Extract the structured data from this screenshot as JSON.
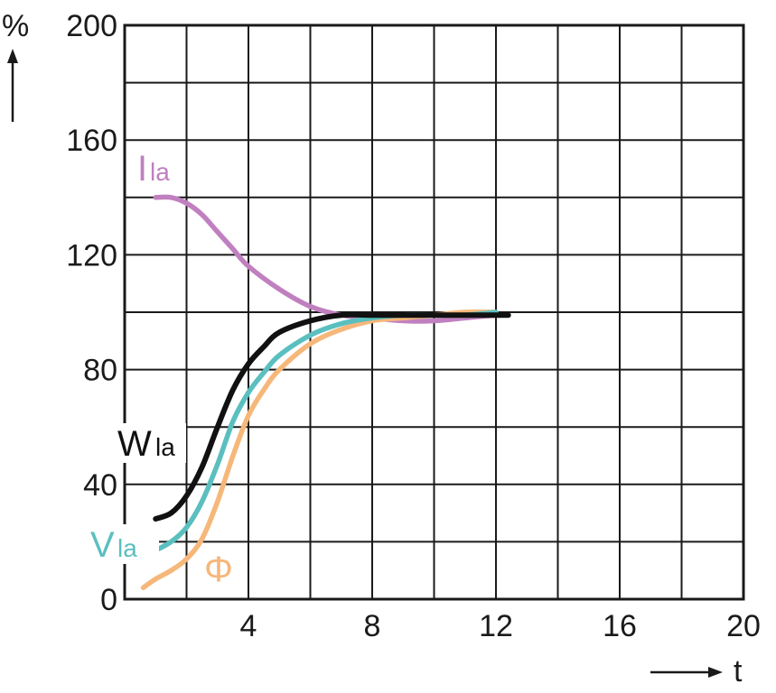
{
  "chart_data": {
    "type": "line",
    "xlim": [
      0,
      20
    ],
    "ylim": [
      0,
      200
    ],
    "x_ticks": [
      4,
      8,
      12,
      16,
      20
    ],
    "y_ticks": [
      0,
      40,
      80,
      120,
      160,
      200
    ],
    "x_tick_labels": [
      "4",
      "8",
      "12",
      "16",
      "20"
    ],
    "y_tick_labels": [
      "0",
      "40",
      "80",
      "120",
      "160",
      "200"
    ],
    "x_grid_step": 2,
    "y_grid_step": 20,
    "grid": true,
    "xlabel": "t",
    "ylabel": "%",
    "series": [
      {
        "name": "I",
        "subscript": "la",
        "color": "#c080c0",
        "x": [
          1.0,
          1.5,
          2.0,
          2.5,
          3.0,
          3.5,
          4.0,
          5.0,
          6.0,
          7.0,
          8.0,
          9.0,
          10.0,
          11.0,
          12.0
        ],
        "y": [
          140,
          140,
          138,
          134,
          128,
          122,
          116,
          108,
          102,
          99,
          98,
          97,
          97,
          98,
          99
        ]
      },
      {
        "name": "W",
        "subscript": "la",
        "color": "#111111",
        "x": [
          1.0,
          1.5,
          2.0,
          2.5,
          3.0,
          3.5,
          4.0,
          4.5,
          5.0,
          6.0,
          7.0,
          8.0,
          9.0,
          10.0,
          11.0,
          12.4
        ],
        "y": [
          28,
          30,
          36,
          46,
          60,
          73,
          82,
          88,
          93,
          97,
          99,
          99,
          99,
          99,
          99,
          99
        ]
      },
      {
        "name": "V",
        "subscript": "la",
        "color": "#5bbfbf",
        "x": [
          1.0,
          1.5,
          2.0,
          2.5,
          3.0,
          3.5,
          4.0,
          4.5,
          5.0,
          6.0,
          7.0,
          8.0,
          9.0,
          10.0,
          11.0,
          12.0
        ],
        "y": [
          17,
          20,
          25,
          34,
          47,
          62,
          72,
          79,
          85,
          92,
          96,
          98,
          99,
          99,
          99,
          100
        ]
      },
      {
        "name": "Φ",
        "subscript": "",
        "color": "#f6b77a",
        "x": [
          0.6,
          1.0,
          1.5,
          2.0,
          2.5,
          3.0,
          3.5,
          4.0,
          4.5,
          5.0,
          6.0,
          7.0,
          8.0,
          9.0,
          10.0,
          11.0,
          12.0
        ],
        "y": [
          4,
          7,
          10,
          14,
          21,
          34,
          50,
          64,
          73,
          80,
          89,
          94,
          97,
          98,
          99,
          100,
          100
        ]
      }
    ]
  }
}
